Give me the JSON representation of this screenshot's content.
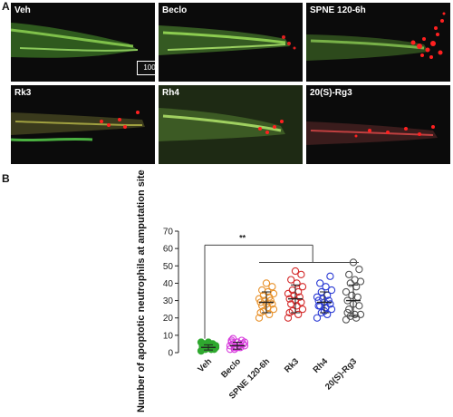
{
  "panel_a": {
    "letter": "A",
    "scale_bar": "100",
    "tiles": [
      {
        "label": "Veh",
        "red_level": 0.1
      },
      {
        "label": "Beclo",
        "red_level": 0.3
      },
      {
        "label": "SPNE 120-6h",
        "red_level": 1.0
      },
      {
        "label": "Rk3",
        "red_level": 0.6
      },
      {
        "label": "Rh4",
        "red_level": 0.5
      },
      {
        "label": "20(S)-Rg3",
        "red_level": 0.7
      }
    ]
  },
  "panel_b": {
    "letter": "B",
    "ylabel": "Number of apoptotic neutrophils at amputation site"
  },
  "chart_data": {
    "type": "scatter",
    "ylabel": "Number of apoptotic neutrophils at amputation site",
    "ylim": [
      0,
      70
    ],
    "yticks": [
      0,
      10,
      20,
      30,
      40,
      50,
      60,
      70
    ],
    "categories": [
      "Veh",
      "Beclo",
      "SPNE 120-6h",
      "Rk3",
      "Rh4",
      "20(S)-Rg3"
    ],
    "significance": "**",
    "series": [
      {
        "color": "#2fa82f",
        "fill": true,
        "mean": 3,
        "sd": 1.5,
        "values": [
          1,
          2,
          2,
          3,
          3,
          3,
          4,
          4,
          4,
          5,
          5,
          6,
          2,
          3,
          4,
          3,
          5,
          2,
          6,
          3
        ]
      },
      {
        "color": "#d63adb",
        "fill": false,
        "mean": 4,
        "sd": 2,
        "values": [
          2,
          3,
          3,
          4,
          4,
          5,
          5,
          6,
          6,
          7,
          3,
          4,
          5,
          2,
          6,
          4,
          8,
          5,
          3,
          7
        ]
      },
      {
        "color": "#e8912a",
        "fill": false,
        "mean": 29,
        "sd": 6,
        "values": [
          20,
          22,
          24,
          25,
          26,
          27,
          28,
          28,
          29,
          30,
          30,
          31,
          32,
          33,
          34,
          35,
          36,
          38,
          40,
          23
        ]
      },
      {
        "color": "#d42a2a",
        "fill": false,
        "mean": 31,
        "sd": 8,
        "values": [
          20,
          22,
          24,
          25,
          27,
          28,
          29,
          30,
          31,
          32,
          33,
          34,
          35,
          36,
          38,
          40,
          42,
          45,
          47,
          23
        ]
      },
      {
        "color": "#2a3ad4",
        "fill": false,
        "mean": 29,
        "sd": 6,
        "values": [
          20,
          22,
          23,
          25,
          26,
          27,
          28,
          29,
          30,
          30,
          31,
          32,
          33,
          35,
          36,
          38,
          40,
          44,
          24,
          27
        ]
      },
      {
        "color": "#555555",
        "fill": false,
        "mean": 30,
        "sd": 9,
        "values": [
          19,
          20,
          21,
          22,
          22,
          25,
          27,
          28,
          30,
          32,
          33,
          35,
          38,
          40,
          41,
          42,
          45,
          48,
          52,
          23
        ]
      }
    ]
  }
}
